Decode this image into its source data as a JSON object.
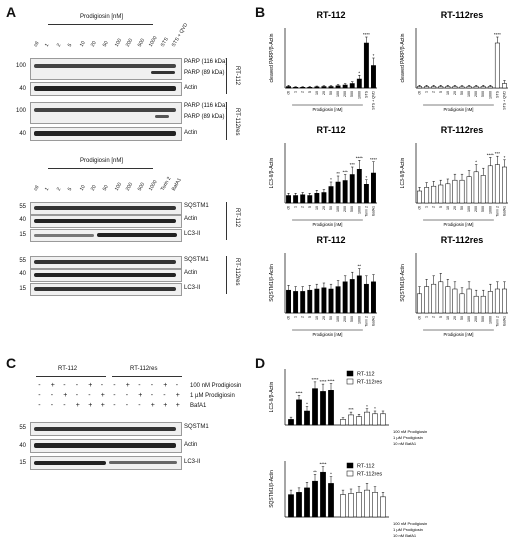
{
  "panels": {
    "A": "A",
    "B": "B",
    "C": "C",
    "D": "D"
  },
  "panelA": {
    "header_top": "Prodigiosin [nM]",
    "header_bottom": "Prodigiosin [nM]",
    "lanes_top": [
      "ctl",
      "1",
      "2",
      "5",
      "10",
      "20",
      "50",
      "100",
      "200",
      "500",
      "1000",
      "STS",
      "STS + QVD"
    ],
    "lanes_bottom": [
      "ctl",
      "1",
      "2",
      "5",
      "10",
      "20",
      "50",
      "100",
      "200",
      "500",
      "1000",
      "Torin 2",
      "BafA1"
    ],
    "mw": {
      "m100": "100",
      "m40": "40",
      "m55": "55",
      "m15": "15"
    },
    "labels": {
      "parp116": "PARP (116 kDa)",
      "parp89": "PARP (89 kDa)",
      "actin": "Actin",
      "sqstm1": "SQSTM1",
      "lc3": "LC3-II"
    },
    "cells": {
      "rt112": "RT-112",
      "rt112res": "RT-112res"
    }
  },
  "panelB": {
    "titles": [
      "RT-112",
      "RT-112res",
      "RT-112",
      "RT-112res",
      "RT-112",
      "RT-112res"
    ],
    "ylabels": [
      "cleaved PARP/β-Actin",
      "cleaved PARP/β-Actin",
      "LC3-II/β-Actin",
      "LC3-II/β-Actin",
      "SQSTM1/β-Actin",
      "SQSTM1/β-Actin"
    ],
    "xgroup": "Prodigiosin [nM]",
    "x_parp": [
      "ctl",
      "1",
      "2",
      "5",
      "10",
      "20",
      "50",
      "100",
      "200",
      "500",
      "1000",
      "STS",
      "STS + QVD"
    ],
    "x_auto": [
      "ctl",
      "1",
      "2",
      "5",
      "10",
      "20",
      "50",
      "100",
      "200",
      "500",
      "1000",
      "Torin 2",
      "BafA1"
    ]
  },
  "panelC": {
    "groups": [
      "RT-112",
      "RT-112res"
    ],
    "conditions": [
      "100 nM Prodigiosin",
      "1 µM Prodigiosin",
      "BafA1"
    ],
    "signs": [
      [
        "-",
        "+",
        "-",
        "-",
        "+",
        "-",
        "-",
        "+",
        "-",
        "-",
        "+",
        "-"
      ],
      [
        "-",
        "-",
        "+",
        "-",
        "-",
        "+",
        "-",
        "-",
        "+",
        "-",
        "-",
        "+"
      ],
      [
        "-",
        "-",
        "-",
        "+",
        "+",
        "+",
        "-",
        "-",
        "-",
        "+",
        "+",
        "+"
      ]
    ],
    "mw": {
      "m55": "55",
      "m40": "40",
      "m15": "15"
    },
    "labels": {
      "sqstm1": "SQSTM1",
      "actin": "Actin",
      "lc3": "LC3-II"
    }
  },
  "panelD": {
    "legend": [
      "RT-112",
      "RT-112res"
    ],
    "ylabels": [
      "LC3-II/β-Actin",
      "SQSTM1/β-Actin"
    ],
    "conditions": [
      "100 nM Prodigiosin",
      "1 µM Prodigiosin",
      "10 nM BafA1"
    ]
  },
  "chart_data": [
    {
      "type": "bar",
      "title": "RT-112",
      "ylabel": "cleaved PARP/β-Actin",
      "ylim": [
        0,
        40
      ],
      "categories": [
        "ctl",
        "1",
        "2",
        "5",
        "10",
        "20",
        "50",
        "100",
        "200",
        "500",
        "1000",
        "STS",
        "STS + QVD"
      ],
      "fill": "#000000",
      "values": [
        1,
        0.5,
        0.5,
        0.5,
        0.8,
        1,
        1,
        1.5,
        2,
        3,
        6,
        30,
        15
      ],
      "errors": [
        0.8,
        0.4,
        0.4,
        0.5,
        0.5,
        0.5,
        0.6,
        0.8,
        0.9,
        1.2,
        2.5,
        4,
        5
      ],
      "annotations": [
        "",
        "",
        "",
        "",
        "",
        "",
        "",
        "",
        "",
        "",
        "*",
        "****",
        "*"
      ]
    },
    {
      "type": "bar",
      "title": "RT-112res",
      "ylabel": "cleaved PARP/β-Actin",
      "ylim": [
        0,
        40
      ],
      "categories": [
        "ctl",
        "1",
        "2",
        "5",
        "10",
        "20",
        "50",
        "100",
        "200",
        "500",
        "1000",
        "STS",
        "STS + QVD"
      ],
      "fill": "#ffffff",
      "values": [
        1,
        1,
        1,
        1,
        1,
        1,
        0.8,
        1,
        1,
        1,
        1,
        30,
        3
      ],
      "errors": [
        0.8,
        0.8,
        0.8,
        0.8,
        0.8,
        0.8,
        0.8,
        0.8,
        0.8,
        0.8,
        0.8,
        4,
        2
      ],
      "annotations": [
        "",
        "",
        "",
        "",
        "",
        "",
        "",
        "",
        "",
        "",
        "",
        "****",
        ""
      ]
    },
    {
      "type": "bar",
      "title": "RT-112",
      "ylabel": "LC3-II/β-Actin",
      "ylim": [
        0,
        8
      ],
      "categories": [
        "ctl",
        "1",
        "2",
        "5",
        "10",
        "20",
        "50",
        "100",
        "200",
        "500",
        "1000",
        "Torin 2",
        "BafA1"
      ],
      "fill": "#000000",
      "values": [
        1,
        1,
        1.1,
        1,
        1.3,
        1.4,
        2.2,
        2.8,
        3,
        3.8,
        4.5,
        2.5,
        4
      ],
      "errors": [
        0.3,
        0.3,
        0.3,
        0.3,
        0.4,
        0.4,
        0.6,
        0.8,
        0.8,
        1,
        1.2,
        0.6,
        1.5
      ],
      "annotations": [
        "",
        "",
        "",
        "",
        "",
        "",
        "*",
        "**",
        "***",
        "***",
        "****",
        "*",
        "****"
      ]
    },
    {
      "type": "bar",
      "title": "RT-112res",
      "ylabel": "LC3-II/β-Actin",
      "ylim": [
        0,
        5
      ],
      "categories": [
        "ctl",
        "1",
        "2",
        "5",
        "10",
        "20",
        "50",
        "100",
        "200",
        "500",
        "1000",
        "Torin 2",
        "BafA1"
      ],
      "fill": "#ffffff",
      "values": [
        1,
        1.3,
        1.4,
        1.5,
        1.6,
        1.9,
        1.9,
        2.2,
        2.6,
        2.3,
        3.1,
        3.2,
        3
      ],
      "errors": [
        0.3,
        0.4,
        0.4,
        0.4,
        0.4,
        0.5,
        0.5,
        0.5,
        0.6,
        0.6,
        0.7,
        0.7,
        0.6
      ],
      "annotations": [
        "",
        "",
        "",
        "",
        "",
        "",
        "",
        "",
        "*",
        "",
        "****",
        "***",
        "*"
      ]
    },
    {
      "type": "bar",
      "title": "RT-112",
      "ylabel": "SQSTM1/β-Actin",
      "ylim": [
        0,
        2.5
      ],
      "categories": [
        "ctl",
        "1",
        "2",
        "5",
        "10",
        "20",
        "50",
        "100",
        "200",
        "500",
        "1000",
        "Torin 2",
        "BafA1"
      ],
      "fill": "#000000",
      "values": [
        0.95,
        0.9,
        0.9,
        0.95,
        1,
        1.05,
        1,
        1.1,
        1.3,
        1.4,
        1.55,
        1.2,
        1.3
      ],
      "errors": [
        0.2,
        0.2,
        0.2,
        0.2,
        0.2,
        0.2,
        0.2,
        0.25,
        0.25,
        0.3,
        0.3,
        0.35,
        0.3
      ],
      "annotations": [
        "",
        "",
        "",
        "",
        "",
        "",
        "",
        "",
        "",
        "",
        "**",
        "",
        ""
      ]
    },
    {
      "type": "bar",
      "title": "RT-112res",
      "ylabel": "SQSTM1/β-Actin",
      "ylim": [
        0,
        2.5
      ],
      "categories": [
        "ctl",
        "1",
        "2",
        "5",
        "10",
        "20",
        "50",
        "100",
        "200",
        "500",
        "1000",
        "Torin 2",
        "BafA1"
      ],
      "fill": "#ffffff",
      "values": [
        0.8,
        1.1,
        1.2,
        1.3,
        1.1,
        1,
        0.8,
        1,
        0.7,
        0.7,
        0.9,
        1.0,
        1.0
      ],
      "errors": [
        0.3,
        0.3,
        0.35,
        0.35,
        0.3,
        0.3,
        0.25,
        0.3,
        0.25,
        0.25,
        0.3,
        0.3,
        0.3
      ],
      "annotations": [
        "",
        "",
        "",
        "",
        "",
        "",
        "",
        "",
        "",
        "",
        "",
        "",
        ""
      ]
    },
    {
      "type": "bar",
      "ylabel": "LC3-II/β-Actin",
      "ylim": [
        0,
        10
      ],
      "series": [
        {
          "name": "RT-112",
          "fill": "#000000",
          "values": [
            1,
            4.5,
            2.5,
            6.5,
            6,
            6.2
          ],
          "errors": [
            0.4,
            0.8,
            0.8,
            1.2,
            1.3,
            1.2
          ],
          "annotations": [
            "",
            "****",
            "*",
            "****",
            "****",
            "****"
          ]
        },
        {
          "name": "RT-112res",
          "fill": "#ffffff",
          "values": [
            1,
            1.8,
            1.5,
            2.3,
            2,
            2
          ],
          "errors": [
            0.3,
            0.5,
            0.4,
            0.6,
            0.5,
            0.5
          ],
          "annotations": [
            "",
            "***",
            "",
            "*",
            "*",
            ""
          ]
        }
      ]
    },
    {
      "type": "bar",
      "ylabel": "SQSTM1/β-Actin",
      "ylim": [
        0,
        2.5
      ],
      "series": [
        {
          "name": "RT-112",
          "fill": "#000000",
          "values": [
            1,
            1.1,
            1.3,
            1.6,
            2,
            1.5
          ],
          "errors": [
            0.2,
            0.2,
            0.25,
            0.3,
            0.25,
            0.3
          ],
          "annotations": [
            "",
            "",
            "",
            "**",
            "****",
            "*"
          ]
        },
        {
          "name": "RT-112res",
          "fill": "#ffffff",
          "values": [
            1,
            1.05,
            1.1,
            1.2,
            1.1,
            0.9
          ],
          "errors": [
            0.2,
            0.2,
            0.25,
            0.3,
            0.25,
            0.2
          ],
          "annotations": [
            "",
            "",
            "",
            "",
            "",
            ""
          ]
        }
      ]
    }
  ]
}
